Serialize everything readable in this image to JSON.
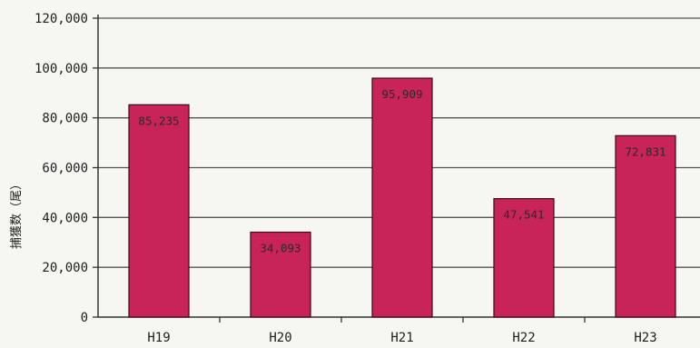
{
  "chart_data": {
    "type": "bar",
    "categories": [
      "H19",
      "H20",
      "H21",
      "H22",
      "H23"
    ],
    "values": [
      85235,
      34093,
      95909,
      47541,
      72831
    ],
    "value_labels": [
      "85,235",
      "34,093",
      "95,909",
      "47,541",
      "72,831"
    ],
    "title": "",
    "xlabel": "",
    "ylabel": "捕獲数（尾）",
    "ylim": [
      0,
      120000
    ],
    "yticks": [
      0,
      20000,
      40000,
      60000,
      80000,
      100000,
      120000
    ],
    "ytick_labels": [
      "0",
      "20,000",
      "40,000",
      "60,000",
      "80,000",
      "100,000",
      "120,000"
    ],
    "grid": true,
    "legend": "none",
    "bar_color": "#c8245a",
    "bar_edge_color": "#3a0a18"
  }
}
